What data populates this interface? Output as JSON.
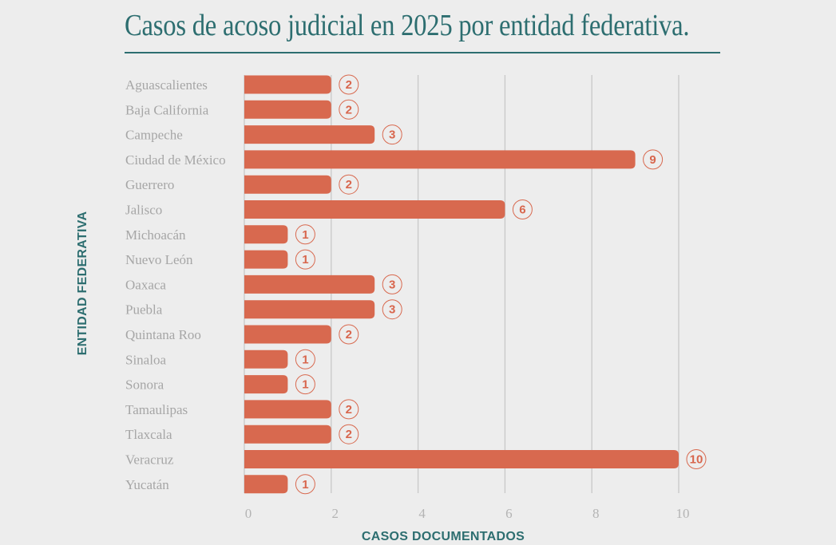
{
  "chart_data": {
    "type": "bar",
    "orientation": "horizontal",
    "title": "Casos de acoso judicial en 2025 por entidad federativa.",
    "xlabel": "CASOS DOCUMENTADOS",
    "ylabel": "ENTIDAD FEDERATIVA",
    "categories": [
      "Aguascalientes",
      "Baja California",
      "Campeche",
      "Ciudad de México",
      "Guerrero",
      "Jalisco",
      "Michoacán",
      "Nuevo León",
      "Oaxaca",
      "Puebla",
      "Quintana Roo",
      "Sinaloa",
      "Sonora",
      "Tamaulipas",
      "Tlaxcala",
      "Veracruz",
      "Yucatán"
    ],
    "values": [
      2,
      2,
      3,
      9,
      2,
      6,
      1,
      1,
      3,
      3,
      2,
      1,
      1,
      2,
      2,
      10,
      1
    ],
    "xlim": [
      0,
      10
    ],
    "xticks": [
      "0",
      "2",
      "4",
      "6",
      "8",
      "10"
    ],
    "grid": "vertical",
    "colors": {
      "bar": "#d8694f",
      "title": "#2d6e70",
      "grid": "#c8c8c8",
      "background": "#ededed"
    }
  }
}
